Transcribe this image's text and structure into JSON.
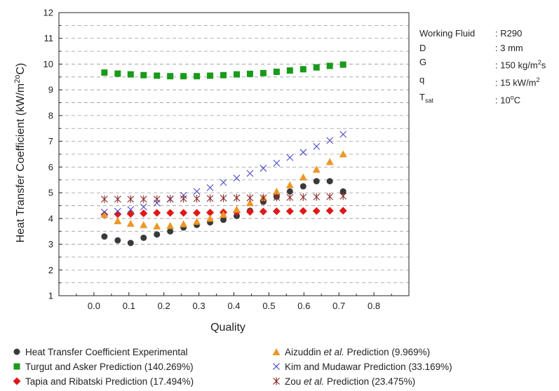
{
  "chart_data": {
    "type": "scatter",
    "ylabel": "Heat Transfer Coefficient (kW/m²°C)",
    "xlabel": "Quality",
    "xlim": [
      -0.1,
      0.9
    ],
    "ylim": [
      1,
      12
    ],
    "xticks": [
      "0.0",
      "0.1",
      "0.2",
      "0.3",
      "0.4",
      "0.5",
      "0.6",
      "0.7",
      "0.8"
    ],
    "yticks": [
      "1",
      "2",
      "3",
      "4",
      "5",
      "6",
      "7",
      "8",
      "9",
      "10",
      "11",
      "12"
    ],
    "grid": "horizontal-dashed",
    "legend_position": "bottom",
    "x": [
      0.03,
      0.068,
      0.105,
      0.142,
      0.18,
      0.218,
      0.256,
      0.294,
      0.332,
      0.37,
      0.408,
      0.446,
      0.484,
      0.522,
      0.56,
      0.598,
      0.636,
      0.674,
      0.712
    ],
    "series": [
      {
        "name": "Heat Transfer Coefficient Experimental",
        "marker": "circle",
        "color": "#3a3a3a",
        "values": [
          3.3,
          3.15,
          3.05,
          3.25,
          3.38,
          3.5,
          3.65,
          3.75,
          3.85,
          3.95,
          4.1,
          4.3,
          4.65,
          4.85,
          5.05,
          5.25,
          5.45,
          5.45,
          5.05
        ]
      },
      {
        "name": "Turgut and Asker Prediction (140.269%)",
        "marker": "square",
        "color": "#1a9a1a",
        "values": [
          9.67,
          9.63,
          9.6,
          9.57,
          9.55,
          9.53,
          9.53,
          9.53,
          9.55,
          9.57,
          9.6,
          9.62,
          9.65,
          9.7,
          9.75,
          9.8,
          9.87,
          9.93,
          9.98
        ]
      },
      {
        "name": "Tapia and Ribatski Prediction (17.494%)",
        "marker": "diamond",
        "color": "#e01818",
        "values": [
          4.15,
          4.17,
          4.18,
          4.2,
          4.22,
          4.22,
          4.22,
          4.22,
          4.23,
          4.24,
          4.25,
          4.26,
          4.27,
          4.28,
          4.28,
          4.29,
          4.29,
          4.3,
          4.3
        ]
      },
      {
        "name": "Aizuddin et al. Prediction (9.969%)",
        "marker": "triangle",
        "color": "#ee9628",
        "values": [
          4.15,
          3.9,
          3.8,
          3.75,
          3.7,
          3.72,
          3.78,
          3.88,
          4.0,
          4.15,
          4.35,
          4.6,
          4.8,
          5.05,
          5.3,
          5.6,
          5.9,
          6.2,
          6.5
        ]
      },
      {
        "name": "Kim and Mudawar Prediction (33.169%)",
        "marker": "x",
        "color": "#4848c8",
        "values": [
          4.25,
          4.28,
          4.35,
          4.45,
          4.6,
          4.75,
          4.9,
          5.05,
          5.2,
          5.4,
          5.57,
          5.75,
          5.95,
          6.15,
          6.37,
          6.57,
          6.8,
          7.03,
          7.27
        ]
      },
      {
        "name": "Zou et al. Prediction (23.475%)",
        "marker": "asterisk",
        "color": "#8b2a2a",
        "values": [
          4.75,
          4.75,
          4.75,
          4.75,
          4.75,
          4.76,
          4.77,
          4.77,
          4.78,
          4.79,
          4.8,
          4.8,
          4.8,
          4.82,
          4.82,
          4.83,
          4.84,
          4.85,
          4.87
        ]
      }
    ],
    "annotations": {
      "rows": [
        {
          "label": "Working Fluid",
          "value": ": R290"
        },
        {
          "label": "D",
          "value": ": 3 mm"
        },
        {
          "label": "G",
          "value": ": 150 kg/m²s"
        },
        {
          "label": "q",
          "value": ": 15 kW/m²"
        },
        {
          "label": "Tsat",
          "value": ": 10°C"
        }
      ]
    }
  },
  "legend_lines": {
    "s0_pre": "Heat Transfer Coefficient Experimental",
    "s1_pre": "Turgut and Asker Prediction (140.269%)",
    "s2_pre": "Tapia and Ribatski Prediction (17.494%)",
    "s3_pre": "Aizuddin ",
    "s3_ital": "et al.",
    "s3_post": " Prediction (9.969%)",
    "s4_pre": "Kim and Mudawar Prediction (33.169%)",
    "s5_pre": "Zou ",
    "s5_ital": "et al.",
    "s5_post": " Prediction (23.475%)"
  },
  "cond_display": {
    "k0": "Working Fluid",
    "v0": ": R290",
    "k1": "D",
    "v1": ": 3 mm",
    "k2": "G",
    "v2a": ": 150 kg/m",
    "v2sup": "2",
    "v2b": "s",
    "k3": "q",
    "v3a": ": 15 kW/m",
    "v3sup": "2",
    "k4a": "T",
    "k4sub": "sat",
    "v4a": ": 10",
    "v4sup": "o",
    "v4b": "C"
  },
  "axis_display": {
    "ylabel_a": "Heat Transfer Coefficient (kW/m",
    "ylabel_sup1": "2",
    "ylabel_b": "o",
    "ylabel_c": "C)"
  }
}
